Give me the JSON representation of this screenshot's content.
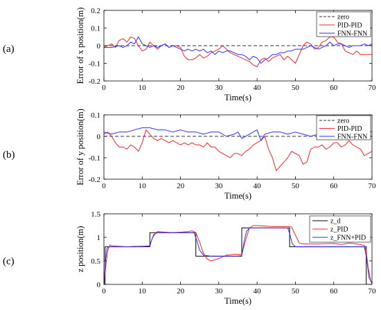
{
  "panels": [
    "(a)",
    "(b)",
    "(c)"
  ],
  "chart_data": [
    {
      "type": "line",
      "ylabel": "Error of x position(m)",
      "xlabel": "Time(s)",
      "xlim": [
        0,
        70
      ],
      "ylim": [
        -0.2,
        0.2
      ],
      "xticks": [
        0,
        10,
        20,
        30,
        40,
        50,
        60,
        70
      ],
      "yticks": [
        -0.2,
        -0.1,
        0,
        0.1,
        0.2
      ],
      "legend_position": "top-right",
      "series": [
        {
          "name": "zero",
          "color": "#333333",
          "dash": "5,3",
          "x": [
            0,
            70
          ],
          "y": [
            0,
            0
          ]
        },
        {
          "name": "PID-PID",
          "color": "#ff2020",
          "x": [
            0,
            2,
            3,
            4,
            5,
            6,
            7,
            8,
            9,
            10,
            11,
            12,
            13,
            14,
            15,
            16,
            17,
            18,
            19,
            20,
            21,
            22,
            23,
            24,
            25,
            26,
            27,
            28,
            29,
            30,
            31,
            32,
            33,
            34,
            35,
            36,
            37,
            38,
            39,
            40,
            41,
            42,
            43,
            44,
            45,
            46,
            47,
            48,
            49,
            50,
            51,
            52,
            53,
            54,
            55,
            56,
            57,
            58,
            59,
            60,
            61,
            62,
            63,
            64,
            65,
            66,
            67,
            68,
            69,
            70
          ],
          "y": [
            -0.01,
            0.01,
            -0.01,
            0.03,
            0.04,
            0.02,
            0.05,
            0.04,
            0,
            -0.03,
            -0.02,
            0.02,
            0,
            -0.02,
            0,
            0.01,
            -0.01,
            0,
            0,
            -0.01,
            -0.06,
            -0.08,
            -0.08,
            -0.07,
            -0.05,
            -0.07,
            -0.06,
            -0.04,
            -0.03,
            -0.02,
            0,
            -0.02,
            -0.04,
            -0.05,
            -0.06,
            -0.07,
            -0.08,
            -0.09,
            -0.11,
            -0.12,
            -0.08,
            -0.07,
            -0.09,
            -0.07,
            -0.06,
            -0.05,
            -0.08,
            -0.06,
            -0.08,
            -0.1,
            -0.05,
            0,
            0.02,
            0.01,
            -0.02,
            -0.01,
            0.02,
            0.03,
            0.05,
            0.05,
            0.02,
            0.01,
            -0.03,
            -0.04,
            -0.05,
            -0.03,
            -0.05,
            -0.05,
            -0.05,
            -0.05
          ]
        },
        {
          "name": "FNN-FNN",
          "color": "#2b2bff",
          "x": [
            0,
            2,
            4,
            5,
            6,
            7,
            8,
            9,
            10,
            11,
            12,
            13,
            14,
            15,
            16,
            17,
            18,
            19,
            20,
            21,
            22,
            23,
            24,
            25,
            26,
            27,
            28,
            29,
            30,
            31,
            32,
            33,
            34,
            35,
            36,
            37,
            38,
            39,
            40,
            41,
            42,
            43,
            44,
            45,
            46,
            47,
            48,
            49,
            50,
            51,
            52,
            53,
            54,
            55,
            56,
            57,
            58,
            59,
            60,
            61,
            62,
            63,
            64,
            65,
            66,
            67,
            68,
            69,
            70
          ],
          "y": [
            -0.01,
            -0.01,
            0,
            -0.01,
            0,
            0.02,
            0.01,
            0.05,
            0.01,
            0,
            -0.01,
            0,
            -0.01,
            0,
            0.01,
            -0.01,
            0,
            -0.01,
            -0.02,
            -0.03,
            -0.02,
            -0.03,
            -0.02,
            -0.03,
            -0.02,
            -0.04,
            -0.03,
            -0.05,
            -0.03,
            -0.04,
            -0.03,
            -0.03,
            -0.04,
            -0.05,
            -0.05,
            -0.06,
            -0.08,
            -0.06,
            -0.07,
            -0.1,
            -0.08,
            -0.07,
            -0.05,
            -0.05,
            -0.04,
            -0.04,
            -0.03,
            -0.03,
            -0.02,
            -0.02,
            -0.02,
            -0.01,
            0,
            -0.01,
            -0.02,
            -0.01,
            0,
            0.02,
            0,
            0.01,
            0.01,
            0,
            -0.01,
            0,
            0,
            0,
            0.01,
            0,
            0.01
          ]
        }
      ]
    },
    {
      "type": "line",
      "ylabel": "Error of y position(m)",
      "xlabel": "Time(s)",
      "xlim": [
        0,
        70
      ],
      "ylim": [
        -0.2,
        0.1
      ],
      "xticks": [
        0,
        10,
        20,
        30,
        40,
        50,
        60,
        70
      ],
      "yticks": [
        -0.2,
        -0.1,
        0,
        0.1
      ],
      "legend_position": "top-right",
      "series": [
        {
          "name": "zero",
          "color": "#333333",
          "dash": "5,3",
          "x": [
            0,
            70
          ],
          "y": [
            0,
            0
          ]
        },
        {
          "name": "PID-PID",
          "color": "#ff2020",
          "x": [
            0,
            1,
            2,
            3,
            4,
            5,
            6,
            7,
            8,
            9,
            10,
            11,
            12,
            13,
            14,
            15,
            16,
            17,
            18,
            19,
            20,
            21,
            22,
            23,
            24,
            25,
            26,
            27,
            28,
            29,
            30,
            31,
            32,
            33,
            34,
            35,
            36,
            37,
            38,
            39,
            40,
            41,
            42,
            43,
            44,
            45,
            46,
            47,
            48,
            49,
            50,
            51,
            52,
            53,
            54,
            55,
            56,
            57,
            58,
            59,
            60,
            61,
            62,
            63,
            64,
            65,
            66,
            67,
            68,
            69,
            70
          ],
          "y": [
            0.01,
            0.02,
            0,
            -0.03,
            -0.05,
            -0.05,
            -0.06,
            -0.04,
            -0.05,
            -0.07,
            -0.03,
            0.03,
            0.01,
            -0.01,
            -0.02,
            -0.01,
            -0.02,
            -0.03,
            -0.02,
            -0.03,
            -0.04,
            -0.03,
            -0.04,
            -0.03,
            -0.04,
            -0.04,
            -0.05,
            -0.03,
            -0.05,
            -0.05,
            -0.07,
            -0.08,
            -0.09,
            -0.1,
            -0.08,
            -0.08,
            -0.09,
            -0.07,
            -0.06,
            -0.04,
            -0.03,
            -0.02,
            0,
            -0.06,
            -0.1,
            -0.16,
            -0.14,
            -0.12,
            -0.1,
            -0.07,
            -0.08,
            -0.09,
            -0.13,
            -0.12,
            -0.06,
            -0.05,
            -0.05,
            -0.04,
            -0.06,
            -0.05,
            -0.03,
            -0.03,
            -0.05,
            -0.04,
            -0.02,
            -0.04,
            -0.05,
            -0.06,
            -0.09,
            -0.08,
            -0.07
          ]
        },
        {
          "name": "FNN-FNN",
          "color": "#2b2bff",
          "x": [
            0,
            2,
            4,
            6,
            8,
            10,
            12,
            14,
            16,
            18,
            20,
            22,
            24,
            26,
            28,
            30,
            32,
            34,
            35,
            36,
            38,
            40,
            41,
            42,
            44,
            46,
            48,
            50,
            52,
            54,
            56,
            58,
            60,
            62,
            64,
            66,
            67,
            68,
            70
          ],
          "y": [
            0.02,
            0.01,
            0.02,
            0.02,
            0.03,
            0.04,
            0.04,
            0.03,
            0.03,
            0.02,
            0.03,
            0.02,
            0.02,
            0.01,
            0.02,
            0.02,
            0,
            0.01,
            0.02,
            -0.01,
            0.01,
            0.03,
            -0.02,
            0.01,
            0.02,
            0.02,
            0.01,
            0.02,
            0.01,
            0,
            0.01,
            0.02,
            0,
            0.02,
            0.02,
            0.03,
            0.05,
            0.04,
            0.02
          ]
        }
      ]
    },
    {
      "type": "line",
      "ylabel": "z position(m)",
      "xlabel": "Time(s)",
      "xlim": [
        0,
        70
      ],
      "ylim": [
        0,
        1.5
      ],
      "xticks": [
        0,
        10,
        20,
        30,
        40,
        50,
        60,
        70
      ],
      "yticks": [
        0,
        0.5,
        1,
        1.5
      ],
      "legend_position": "top-right",
      "series": [
        {
          "name": "z_d",
          "color": "#000000",
          "x": [
            0,
            0.3,
            0.3,
            12,
            12,
            24,
            24,
            36,
            36,
            48.5,
            48.5,
            68.5,
            68.5,
            70
          ],
          "y": [
            0,
            0,
            0.8,
            0.8,
            1.1,
            1.1,
            0.6,
            0.6,
            1.2,
            1.2,
            0.8,
            0.8,
            0,
            0
          ]
        },
        {
          "name": "z_PID",
          "color": "#ff2020",
          "x": [
            0,
            0.5,
            1,
            1.6,
            2,
            4,
            6,
            8,
            10,
            12,
            12.6,
            13.5,
            14,
            16,
            18,
            20,
            22,
            23,
            24,
            25,
            26,
            27,
            28,
            30,
            32,
            34,
            36,
            37,
            38,
            39,
            40,
            44,
            48,
            49,
            50,
            51,
            52,
            56,
            60,
            62,
            64,
            66,
            68,
            68.5,
            69,
            69.6,
            70
          ],
          "y": [
            0,
            0.4,
            0.72,
            0.84,
            0.82,
            0.81,
            0.8,
            0.81,
            0.81,
            0.82,
            0.98,
            1.09,
            1.12,
            1.11,
            1.1,
            1.11,
            1.12,
            1.14,
            1.1,
            0.9,
            0.66,
            0.54,
            0.5,
            0.55,
            0.62,
            0.64,
            0.64,
            0.94,
            1.2,
            1.25,
            1.25,
            1.23,
            1.23,
            1.22,
            1.05,
            0.88,
            0.86,
            0.86,
            0.87,
            0.85,
            0.88,
            0.86,
            0.83,
            0.7,
            0.35,
            0.1,
            0.02
          ]
        },
        {
          "name": "z_FNN+PID",
          "color": "#2b2bff",
          "x": [
            0,
            0.4,
            0.8,
            1.2,
            2,
            4,
            8,
            12,
            12.5,
            13,
            14,
            18,
            22,
            23.5,
            24.2,
            25,
            26,
            28,
            30,
            34,
            36,
            36.6,
            37.2,
            38,
            42,
            48,
            48.6,
            49.2,
            50,
            52,
            56,
            60,
            64,
            68,
            68.6,
            69.2,
            70
          ],
          "y": [
            0,
            0.5,
            0.76,
            0.8,
            0.8,
            0.8,
            0.8,
            0.81,
            0.95,
            1.06,
            1.1,
            1.1,
            1.1,
            1.1,
            0.95,
            0.73,
            0.62,
            0.6,
            0.6,
            0.6,
            0.61,
            0.9,
            1.12,
            1.2,
            1.2,
            1.2,
            1.05,
            0.86,
            0.8,
            0.8,
            0.8,
            0.8,
            0.8,
            0.8,
            0.55,
            0.15,
            0.02
          ]
        }
      ]
    }
  ]
}
